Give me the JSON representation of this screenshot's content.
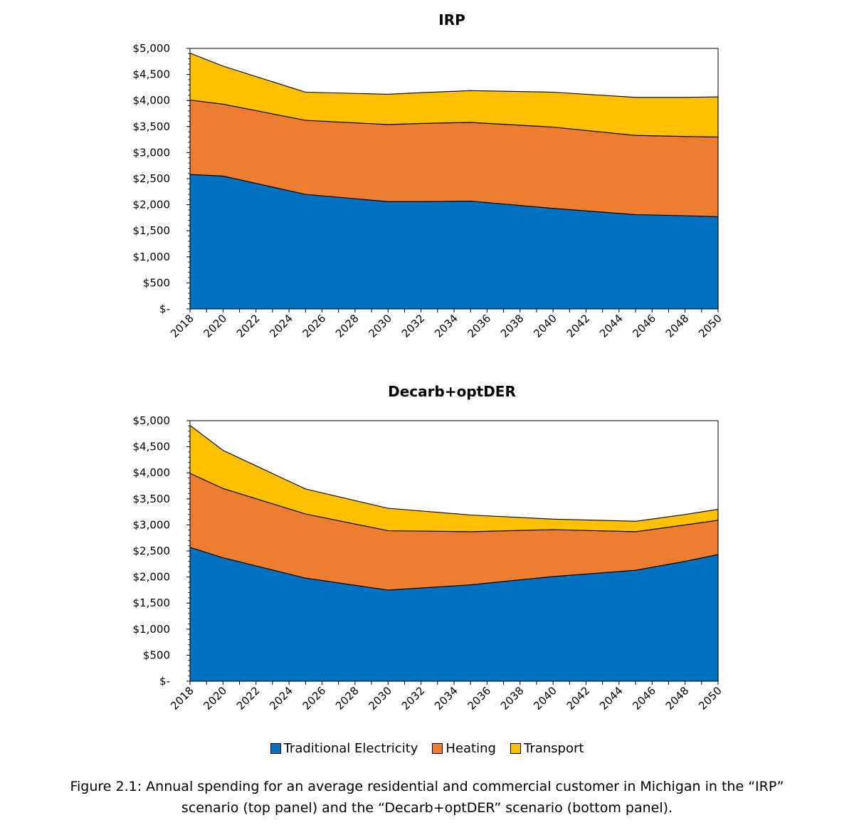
{
  "colors": {
    "traditional_electricity": "#0070c0",
    "heating": "#ed7d31",
    "transport": "#ffc000"
  },
  "legend": [
    {
      "label": "Traditional Electricity",
      "color": "#0070c0"
    },
    {
      "label": "Heating",
      "color": "#ed7d31"
    },
    {
      "label": "Transport",
      "color": "#ffc000"
    }
  ],
  "caption": {
    "line1": "Figure 2.1: Annual spending for an average residential and commercial customer in Michigan in the “IRP”",
    "line2": "scenario (top panel) and the “Decarb+optDER” scenario (bottom panel)."
  },
  "chart_data": [
    {
      "type": "area",
      "stacked": true,
      "title": "IRP",
      "xlabel": "",
      "ylabel": "",
      "ylim": [
        0,
        5000
      ],
      "yticks": [
        0,
        500,
        1000,
        1500,
        2000,
        2500,
        3000,
        3500,
        4000,
        4500,
        5000
      ],
      "ytick_labels": [
        "$-",
        "$500",
        "$1,000",
        "$1,500",
        "$2,000",
        "$2,500",
        "$3,000",
        "$3,500",
        "$4,000",
        "$4,500",
        "$5,000"
      ],
      "xtick_labels": [
        "2018",
        "2020",
        "2022",
        "2024",
        "2026",
        "2028",
        "2030",
        "2032",
        "2034",
        "2036",
        "2038",
        "2040",
        "2042",
        "2044",
        "2046",
        "2048",
        "2050"
      ],
      "x": [
        2018,
        2020,
        2025,
        2030,
        2032,
        2035,
        2040,
        2045,
        2048,
        2050
      ],
      "series": [
        {
          "name": "Traditional Electricity",
          "values": [
            2580,
            2550,
            2200,
            2060,
            2060,
            2070,
            1930,
            1810,
            1790,
            1770
          ]
        },
        {
          "name": "Heating",
          "values": [
            1430,
            1380,
            1420,
            1480,
            1500,
            1510,
            1560,
            1520,
            1520,
            1530
          ]
        },
        {
          "name": "Transport",
          "values": [
            900,
            730,
            540,
            580,
            590,
            610,
            670,
            730,
            750,
            770
          ]
        }
      ],
      "grid": false
    },
    {
      "type": "area",
      "stacked": true,
      "title": "Decarb+optDER",
      "xlabel": "",
      "ylabel": "",
      "ylim": [
        0,
        5000
      ],
      "yticks": [
        0,
        500,
        1000,
        1500,
        2000,
        2500,
        3000,
        3500,
        4000,
        4500,
        5000
      ],
      "ytick_labels": [
        "$-",
        "$500",
        "$1,000",
        "$1,500",
        "$2,000",
        "$2,500",
        "$3,000",
        "$3,500",
        "$4,000",
        "$4,500",
        "$5,000"
      ],
      "xtick_labels": [
        "2018",
        "2020",
        "2022",
        "2024",
        "2026",
        "2028",
        "2030",
        "2032",
        "2034",
        "2036",
        "2038",
        "2040",
        "2042",
        "2044",
        "2046",
        "2048",
        "2050"
      ],
      "x": [
        2018,
        2020,
        2025,
        2030,
        2035,
        2040,
        2045,
        2048,
        2050
      ],
      "series": [
        {
          "name": "Traditional Electricity",
          "values": [
            2570,
            2370,
            1980,
            1750,
            1850,
            2010,
            2130,
            2300,
            2430
          ]
        },
        {
          "name": "Heating",
          "values": [
            1420,
            1330,
            1230,
            1140,
            1020,
            900,
            740,
            700,
            660
          ]
        },
        {
          "name": "Transport",
          "values": [
            920,
            730,
            480,
            430,
            320,
            200,
            200,
            200,
            210
          ]
        }
      ],
      "grid": false
    }
  ]
}
